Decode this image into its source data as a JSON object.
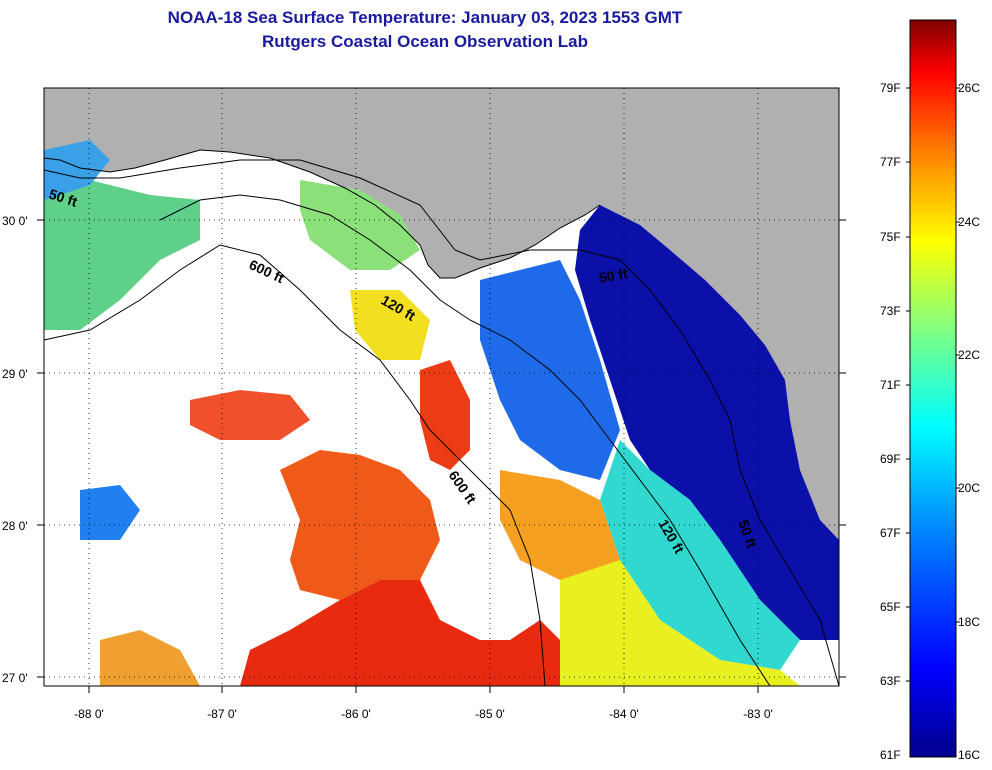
{
  "header": {
    "title": "NOAA-18 Sea Surface Temperature:  January 03, 2023 1553 GMT",
    "subtitle": "Rutgers Coastal Ocean Observation Lab"
  },
  "map": {
    "lon_labels": [
      "-88 0'",
      "-87 0'",
      "-86 0'",
      "-85 0'",
      "-84 0'",
      "-83 0'"
    ],
    "lat_labels": [
      "30 0'",
      "29 0'",
      "28 0'",
      "27 0'"
    ],
    "contour_labels": [
      "50 ft",
      "600 ft",
      "120 ft",
      "50 ft",
      "600 ft",
      "120 ft",
      "50 ft"
    ]
  },
  "colorbar": {
    "fahrenheit": [
      "79F",
      "77F",
      "75F",
      "73F",
      "71F",
      "69F",
      "67F",
      "65F",
      "63F",
      "61F"
    ],
    "celsius": [
      "26C",
      "24C",
      "22C",
      "20C",
      "18C",
      "16C"
    ]
  },
  "colors": {
    "land": "#b0b0b0",
    "title": "#1a1aa0",
    "colormap": [
      "#00008b",
      "#0000ff",
      "#0080ff",
      "#00ffff",
      "#80ff80",
      "#ffff00",
      "#ff8000",
      "#ff0000",
      "#800000"
    ]
  }
}
